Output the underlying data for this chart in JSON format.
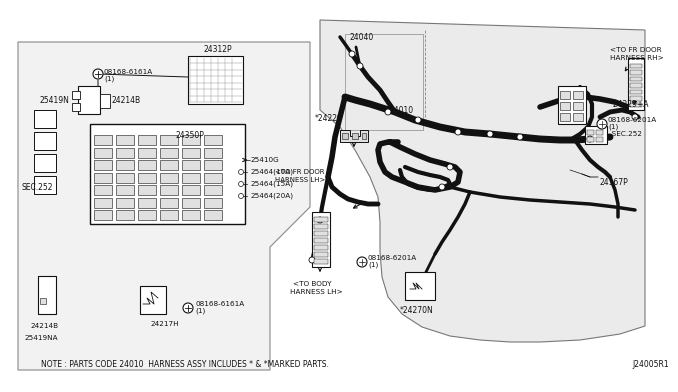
{
  "bg_color": "#ffffff",
  "note_text": "NOTE : PARTS CODE 24010  HARNESS ASSY INCLUDES * & *MARKED PARTS.",
  "diagram_id": "J24005R1",
  "light_gray": "#e8e8e8",
  "dark_line": "#111111",
  "mid_gray": "#aaaaaa",
  "border_gray": "#666666"
}
